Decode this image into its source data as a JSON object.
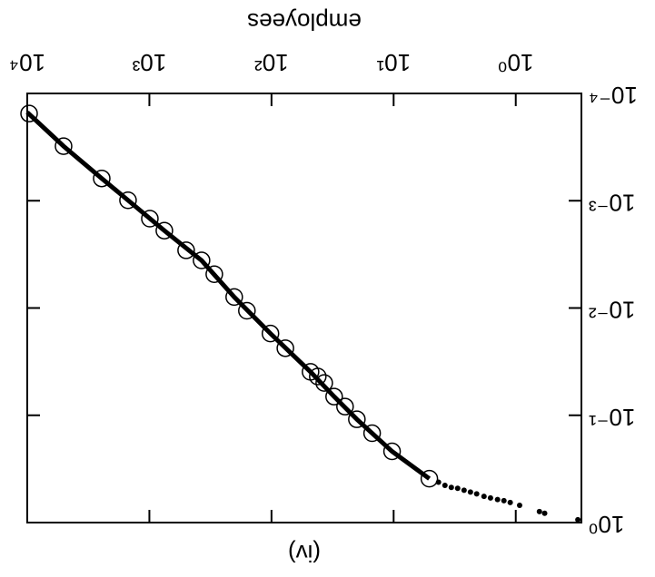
{
  "chart_data": {
    "type": "scatter",
    "title": "(iv)",
    "x_label": "employees",
    "log_x": true,
    "log_y": true,
    "xlim": [
      0.29,
      10000
    ],
    "ylim": [
      0.0001,
      1
    ],
    "xticks": [
      {
        "value": 1,
        "label": "10⁰"
      },
      {
        "value": 10,
        "label": "10¹"
      },
      {
        "value": 100,
        "label": "10²"
      },
      {
        "value": 1000,
        "label": "10³"
      },
      {
        "value": 10000,
        "label": "10⁴"
      }
    ],
    "yticks": [
      {
        "value": 0.0001,
        "label": "10⁻⁴"
      },
      {
        "value": 0.001,
        "label": "10⁻³"
      },
      {
        "value": 0.01,
        "label": "10⁻²"
      },
      {
        "value": 0.1,
        "label": "10⁻¹"
      },
      {
        "value": 1,
        "label": "10⁰"
      }
    ],
    "series": [
      {
        "style": "dots",
        "color": "#000000",
        "x": [
          0.31,
          0.58,
          0.64,
          0.93,
          1.11,
          1.25,
          1.41,
          1.61,
          1.82,
          2.09,
          2.35,
          2.65,
          2.99,
          3.37,
          3.8,
          4.29
        ],
        "values": [
          0.94,
          0.82,
          0.79,
          0.69,
          0.65,
          0.625,
          0.61,
          0.59,
          0.57,
          0.54,
          0.52,
          0.5,
          0.48,
          0.47,
          0.45,
          0.42
        ]
      },
      {
        "style": "line",
        "color": "#000000",
        "x": [
          5.1,
          10.3,
          20,
          30.7,
          47.9,
          102,
          202,
          374,
          754,
          1496,
          2456,
          5044,
          10000
        ],
        "values": [
          0.39,
          0.217,
          0.109,
          0.067,
          0.0394,
          0.0173,
          0.0079,
          0.0036,
          0.0019,
          0.00099,
          0.00062,
          0.00031,
          0.00015
        ]
      },
      {
        "style": "circles",
        "color": "#000000",
        "x": [
          5.1,
          10.3,
          15,
          20,
          25,
          30.7,
          37,
          41.8,
          47.9,
          77,
          102,
          159,
          202,
          294,
          374,
          500,
          754,
          991,
          1496,
          2456,
          5044,
          9660
        ],
        "values": [
          0.39,
          0.217,
          0.147,
          0.109,
          0.083,
          0.067,
          0.05,
          0.0435,
          0.0394,
          0.0237,
          0.0173,
          0.0106,
          0.0079,
          0.00484,
          0.0036,
          0.0029,
          0.0019,
          0.00147,
          0.00099,
          0.00062,
          0.00031,
          0.000154
        ]
      }
    ]
  }
}
